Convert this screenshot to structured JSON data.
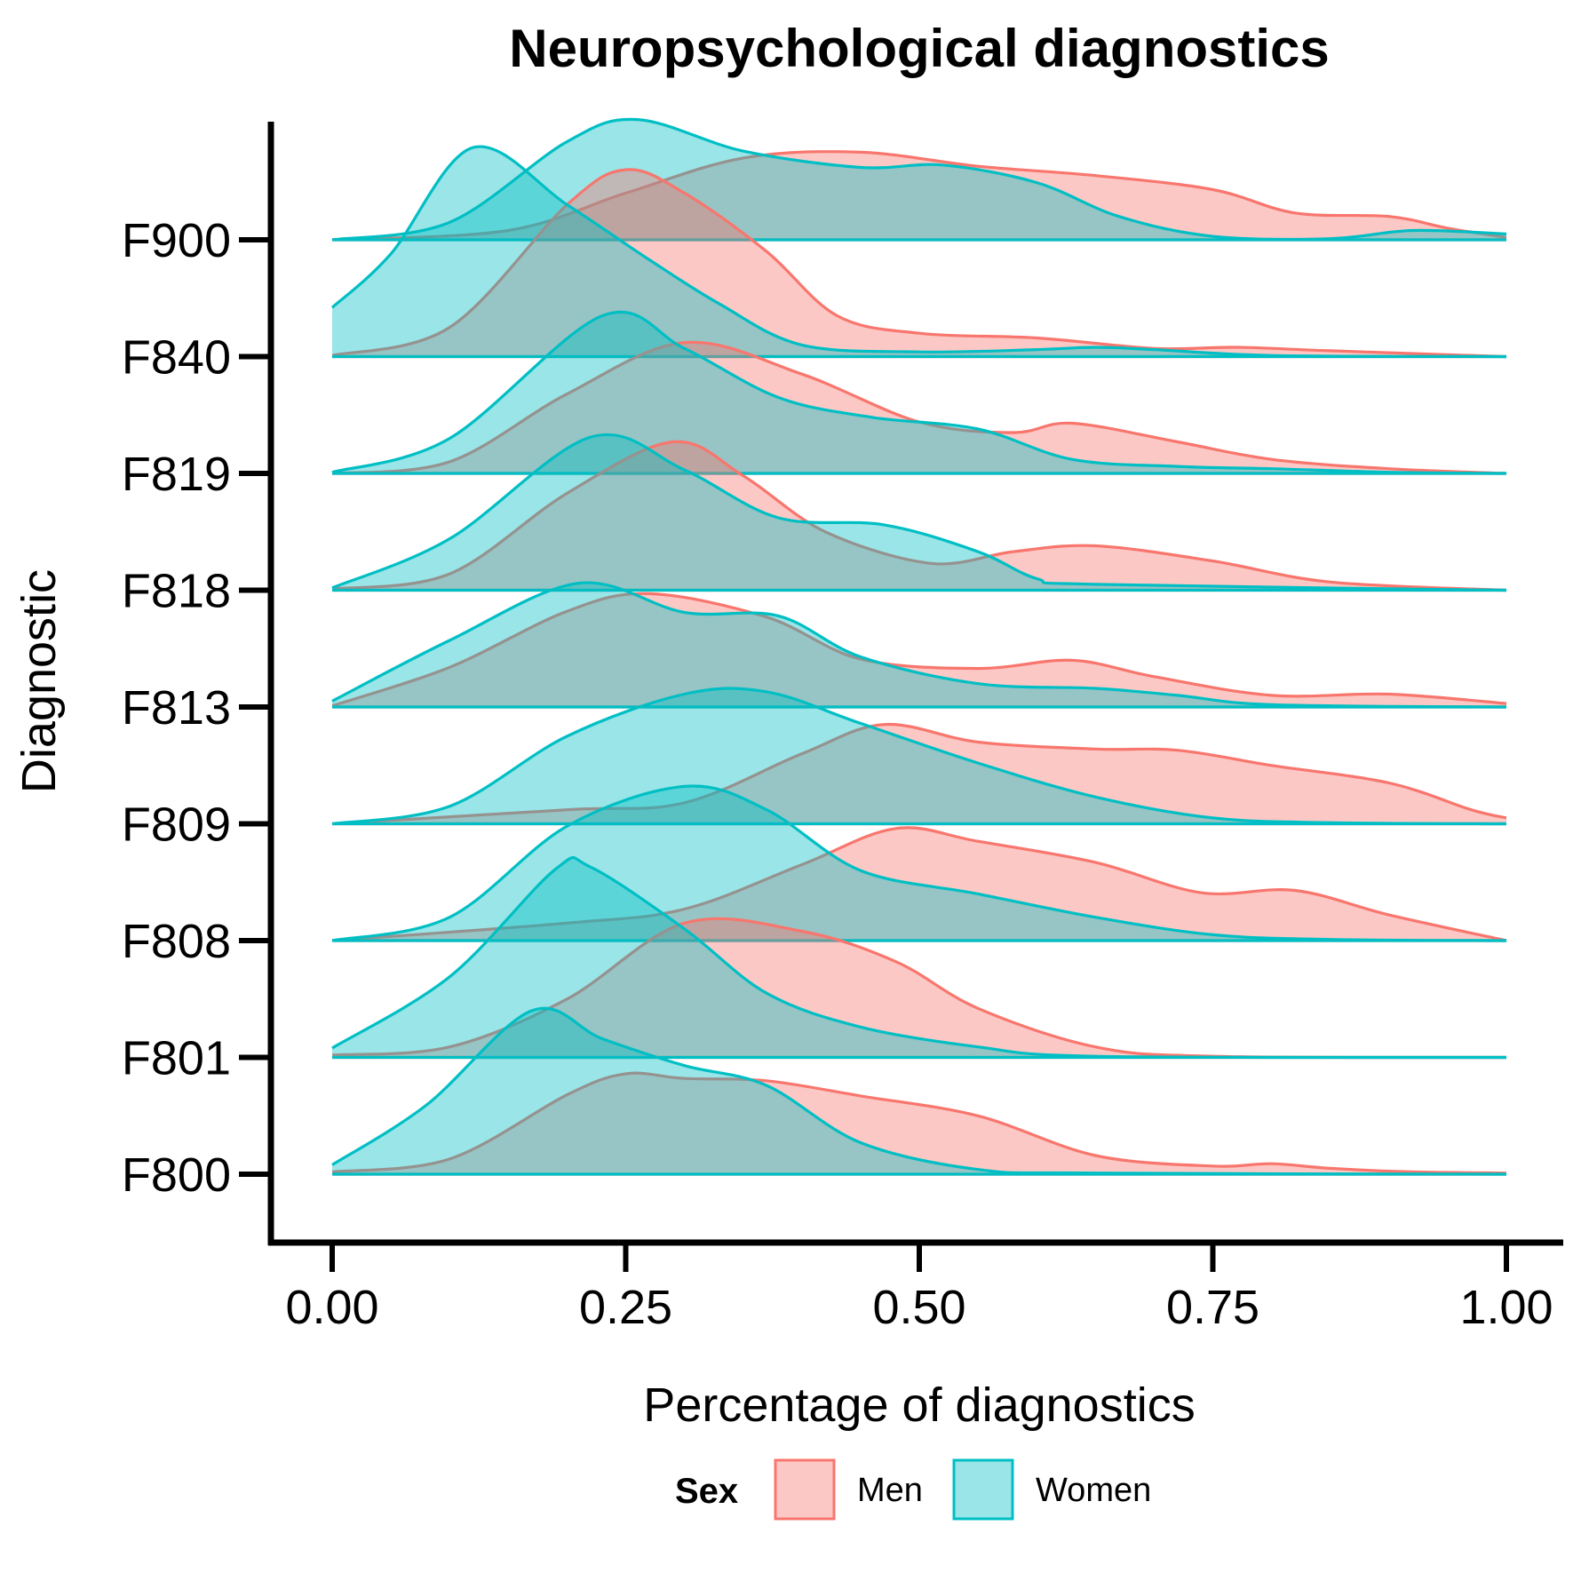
{
  "chart_data": {
    "type": "area",
    "subtype": "ridgeline-density",
    "title": "Neuropsychological diagnostics",
    "xlabel": "Percentage of diagnostics",
    "ylabel": "Diagnostic",
    "xlim": [
      0,
      1
    ],
    "x_ticks": [
      0,
      0.25,
      0.5,
      0.75,
      1
    ],
    "x_tick_labels": [
      "0.00",
      "0.25",
      "0.50",
      "0.75",
      "1.00"
    ],
    "categories": [
      "F800",
      "F801",
      "F808",
      "F809",
      "F813",
      "F818",
      "F819",
      "F840",
      "F900"
    ],
    "grid": false,
    "legend": {
      "title": "Sex",
      "position": "bottom",
      "entries": [
        {
          "name": "Men",
          "color": "#F8766D"
        },
        {
          "name": "Women",
          "color": "#00BFC4"
        }
      ]
    },
    "colors": {
      "men": "#F8766D",
      "women": "#00BFC4"
    },
    "density_height_unit": "ridge spacing (1 = distance between baselines)",
    "series": [
      {
        "name": "Men",
        "ridges": {
          "F800": [
            [
              0,
              0.02
            ],
            [
              0.1,
              0.13
            ],
            [
              0.2,
              0.68
            ],
            [
              0.25,
              0.86
            ],
            [
              0.3,
              0.82
            ],
            [
              0.37,
              0.8
            ],
            [
              0.45,
              0.67
            ],
            [
              0.55,
              0.5
            ],
            [
              0.65,
              0.16
            ],
            [
              0.75,
              0.07
            ],
            [
              0.8,
              0.09
            ],
            [
              0.85,
              0.05
            ],
            [
              0.92,
              0.02
            ],
            [
              1,
              0.01
            ]
          ],
          "F801": [
            [
              0,
              0.02
            ],
            [
              0.1,
              0.09
            ],
            [
              0.2,
              0.5
            ],
            [
              0.3,
              1.15
            ],
            [
              0.4,
              1.08
            ],
            [
              0.48,
              0.82
            ],
            [
              0.55,
              0.42
            ],
            [
              0.65,
              0.09
            ],
            [
              0.75,
              0.01
            ],
            [
              1,
              0
            ]
          ],
          "F808": [
            [
              0,
              0
            ],
            [
              0.2,
              0.15
            ],
            [
              0.3,
              0.27
            ],
            [
              0.4,
              0.65
            ],
            [
              0.48,
              0.96
            ],
            [
              0.55,
              0.85
            ],
            [
              0.65,
              0.67
            ],
            [
              0.74,
              0.41
            ],
            [
              0.82,
              0.43
            ],
            [
              0.9,
              0.22
            ],
            [
              1,
              0
            ]
          ],
          "F809": [
            [
              0,
              0
            ],
            [
              0.2,
              0.12
            ],
            [
              0.3,
              0.18
            ],
            [
              0.4,
              0.6
            ],
            [
              0.47,
              0.85
            ],
            [
              0.55,
              0.7
            ],
            [
              0.65,
              0.64
            ],
            [
              0.72,
              0.63
            ],
            [
              0.8,
              0.5
            ],
            [
              0.9,
              0.35
            ],
            [
              0.97,
              0.12
            ],
            [
              1,
              0.05
            ]
          ],
          "F813": [
            [
              0,
              0.01
            ],
            [
              0.1,
              0.34
            ],
            [
              0.2,
              0.82
            ],
            [
              0.27,
              0.97
            ],
            [
              0.37,
              0.77
            ],
            [
              0.45,
              0.41
            ],
            [
              0.55,
              0.33
            ],
            [
              0.63,
              0.4
            ],
            [
              0.7,
              0.26
            ],
            [
              0.8,
              0.1
            ],
            [
              0.9,
              0.11
            ],
            [
              1,
              0.03
            ]
          ],
          "F818": [
            [
              0,
              0.01
            ],
            [
              0.1,
              0.14
            ],
            [
              0.2,
              0.83
            ],
            [
              0.29,
              1.27
            ],
            [
              0.35,
              0.98
            ],
            [
              0.42,
              0.5
            ],
            [
              0.51,
              0.23
            ],
            [
              0.58,
              0.33
            ],
            [
              0.65,
              0.38
            ],
            [
              0.75,
              0.25
            ],
            [
              0.85,
              0.07
            ],
            [
              1,
              0
            ]
          ],
          "F819": [
            [
              0,
              0
            ],
            [
              0.1,
              0.1
            ],
            [
              0.2,
              0.68
            ],
            [
              0.3,
              1.12
            ],
            [
              0.4,
              0.85
            ],
            [
              0.5,
              0.44
            ],
            [
              0.58,
              0.35
            ],
            [
              0.63,
              0.43
            ],
            [
              0.72,
              0.27
            ],
            [
              0.8,
              0.12
            ],
            [
              0.9,
              0.04
            ],
            [
              1,
              0
            ]
          ],
          "F840": [
            [
              0,
              0.01
            ],
            [
              0.1,
              0.25
            ],
            [
              0.2,
              1.3
            ],
            [
              0.25,
              1.6
            ],
            [
              0.3,
              1.4
            ],
            [
              0.37,
              0.9
            ],
            [
              0.43,
              0.35
            ],
            [
              0.5,
              0.2
            ],
            [
              0.6,
              0.16
            ],
            [
              0.7,
              0.07
            ],
            [
              0.77,
              0.08
            ],
            [
              0.85,
              0.05
            ],
            [
              1,
              0
            ]
          ],
          "F900": [
            [
              0,
              0
            ],
            [
              0.15,
              0.08
            ],
            [
              0.25,
              0.4
            ],
            [
              0.35,
              0.7
            ],
            [
              0.45,
              0.75
            ],
            [
              0.55,
              0.63
            ],
            [
              0.65,
              0.55
            ],
            [
              0.75,
              0.43
            ],
            [
              0.82,
              0.23
            ],
            [
              0.9,
              0.2
            ],
            [
              0.95,
              0.1
            ],
            [
              1,
              0.02
            ]
          ]
        }
      },
      {
        "name": "Women",
        "ridges": {
          "F800": [
            [
              0,
              0.08
            ],
            [
              0.08,
              0.59
            ],
            [
              0.17,
              1.4
            ],
            [
              0.23,
              1.16
            ],
            [
              0.3,
              0.93
            ],
            [
              0.37,
              0.76
            ],
            [
              0.45,
              0.27
            ],
            [
              0.55,
              0.04
            ],
            [
              0.65,
              0.01
            ],
            [
              1,
              0
            ]
          ],
          "F801": [
            [
              0,
              0.08
            ],
            [
              0.1,
              0.69
            ],
            [
              0.19,
              1.61
            ],
            [
              0.22,
              1.63
            ],
            [
              0.3,
              1.1
            ],
            [
              0.37,
              0.55
            ],
            [
              0.45,
              0.26
            ],
            [
              0.55,
              0.09
            ],
            [
              0.65,
              0.01
            ],
            [
              1,
              0
            ]
          ],
          "F808": [
            [
              0,
              0
            ],
            [
              0.1,
              0.2
            ],
            [
              0.2,
              0.98
            ],
            [
              0.3,
              1.32
            ],
            [
              0.37,
              1.12
            ],
            [
              0.45,
              0.6
            ],
            [
              0.55,
              0.4
            ],
            [
              0.65,
              0.2
            ],
            [
              0.75,
              0.05
            ],
            [
              0.85,
              0.01
            ],
            [
              1,
              0
            ]
          ],
          "F809": [
            [
              0,
              0
            ],
            [
              0.1,
              0.15
            ],
            [
              0.2,
              0.75
            ],
            [
              0.3,
              1.11
            ],
            [
              0.37,
              1.13
            ],
            [
              0.45,
              0.86
            ],
            [
              0.55,
              0.52
            ],
            [
              0.65,
              0.23
            ],
            [
              0.75,
              0.05
            ],
            [
              0.85,
              0.01
            ],
            [
              1,
              0
            ]
          ],
          "F813": [
            [
              0,
              0.05
            ],
            [
              0.1,
              0.57
            ],
            [
              0.21,
              1.06
            ],
            [
              0.3,
              0.81
            ],
            [
              0.38,
              0.78
            ],
            [
              0.45,
              0.43
            ],
            [
              0.55,
              0.2
            ],
            [
              0.65,
              0.16
            ],
            [
              0.72,
              0.1
            ],
            [
              0.8,
              0.02
            ],
            [
              1,
              0
            ]
          ],
          "F818": [
            [
              0,
              0.02
            ],
            [
              0.1,
              0.44
            ],
            [
              0.22,
              1.31
            ],
            [
              0.3,
              1.03
            ],
            [
              0.38,
              0.62
            ],
            [
              0.47,
              0.56
            ],
            [
              0.55,
              0.33
            ],
            [
              0.6,
              0.1
            ],
            [
              0.65,
              0.05
            ],
            [
              1,
              0
            ]
          ],
          "F819": [
            [
              0,
              0.01
            ],
            [
              0.1,
              0.3
            ],
            [
              0.23,
              1.35
            ],
            [
              0.3,
              1.07
            ],
            [
              0.38,
              0.65
            ],
            [
              0.46,
              0.48
            ],
            [
              0.55,
              0.38
            ],
            [
              0.63,
              0.12
            ],
            [
              0.72,
              0.06
            ],
            [
              0.8,
              0.04
            ],
            [
              0.9,
              0.01
            ],
            [
              1,
              0
            ]
          ],
          "F840": [
            [
              0,
              0.42
            ],
            [
              0.05,
              0.88
            ],
            [
              0.12,
              1.79
            ],
            [
              0.2,
              1.3
            ],
            [
              0.27,
              0.83
            ],
            [
              0.33,
              0.45
            ],
            [
              0.4,
              0.1
            ],
            [
              0.5,
              0.04
            ],
            [
              0.6,
              0.06
            ],
            [
              0.65,
              0.08
            ],
            [
              0.7,
              0.06
            ],
            [
              0.8,
              0.01
            ],
            [
              1,
              0
            ]
          ],
          "F900": [
            [
              0,
              0
            ],
            [
              0.1,
              0.15
            ],
            [
              0.2,
              0.84
            ],
            [
              0.26,
              1.03
            ],
            [
              0.35,
              0.76
            ],
            [
              0.45,
              0.62
            ],
            [
              0.52,
              0.64
            ],
            [
              0.6,
              0.49
            ],
            [
              0.67,
              0.2
            ],
            [
              0.75,
              0.03
            ],
            [
              0.85,
              0.01
            ],
            [
              0.92,
              0.08
            ],
            [
              1,
              0.05
            ]
          ]
        }
      }
    ]
  }
}
